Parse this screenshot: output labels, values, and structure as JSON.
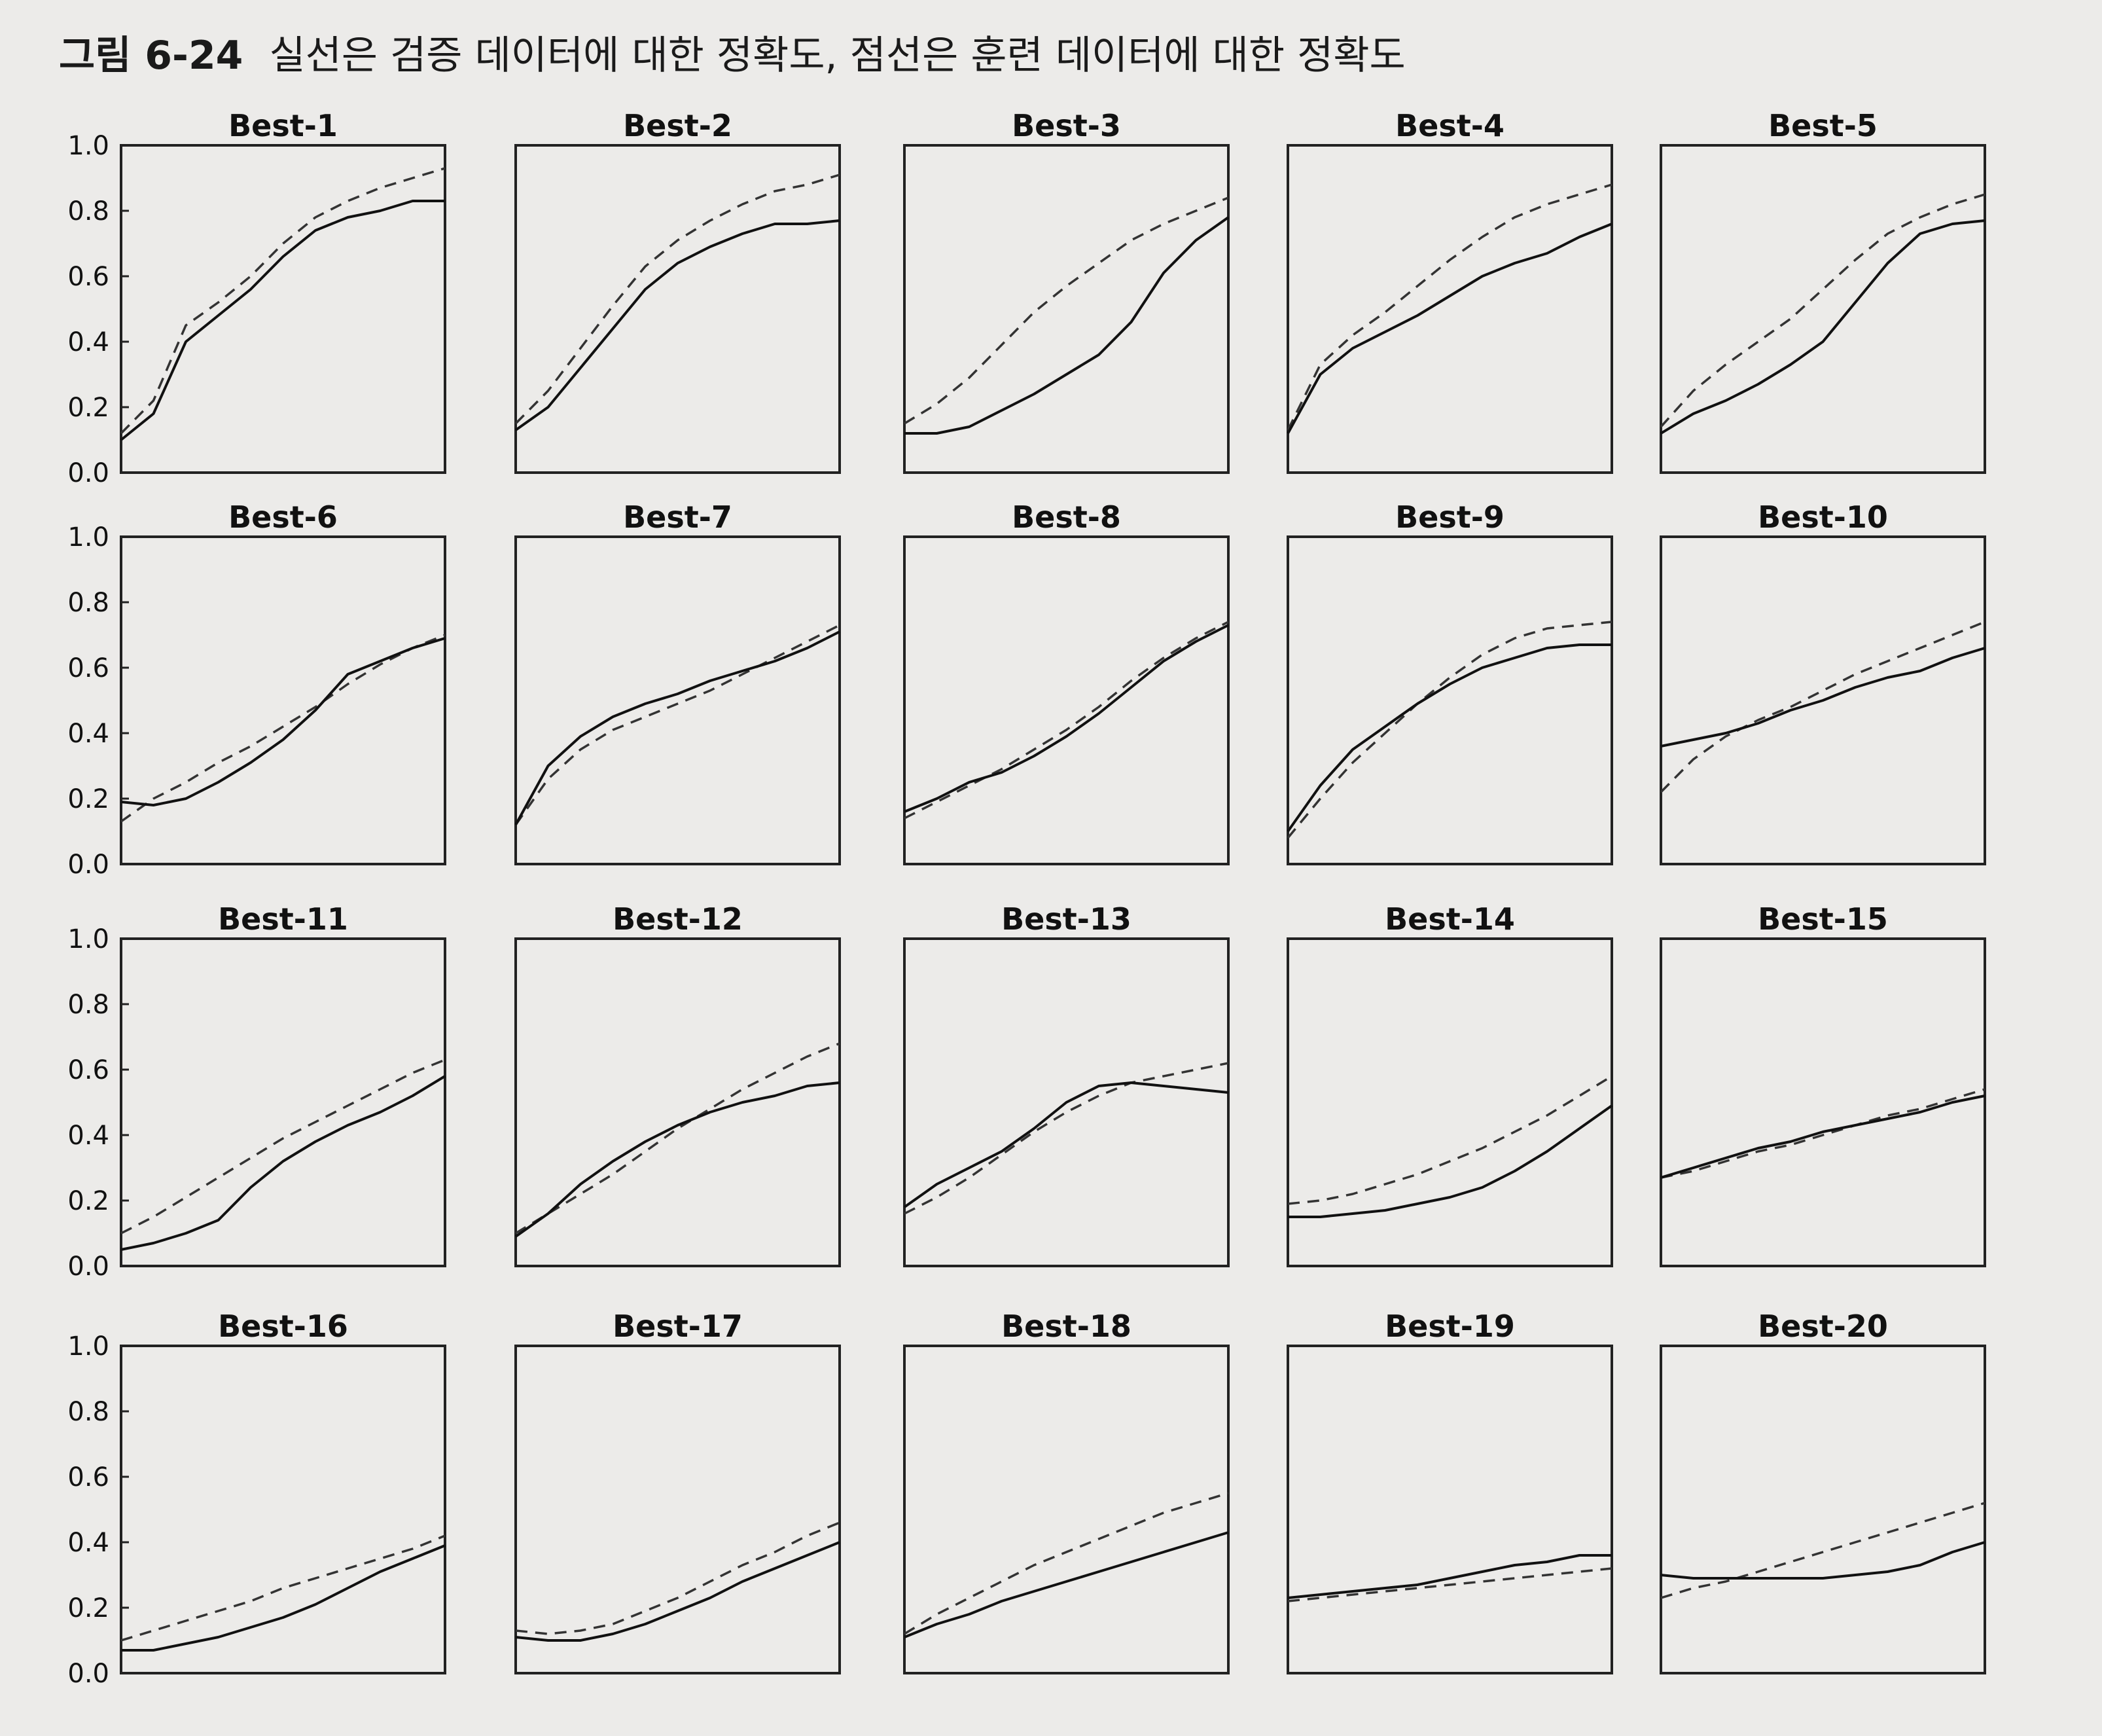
{
  "figure": {
    "label": "그림 6-24",
    "caption": "실선은 검증 데이터에 대한 정확도, 점선은 훈련 데이터에 대한 정확도"
  },
  "chart_data": {
    "type": "line",
    "layout": "grid",
    "rows": 4,
    "cols": 5,
    "ylim": [
      0.0,
      1.0
    ],
    "yticks": [
      "0.0",
      "0.2",
      "0.4",
      "0.6",
      "0.8",
      "1.0"
    ],
    "x": [
      0,
      0.1,
      0.2,
      0.3,
      0.4,
      0.5,
      0.6,
      0.7,
      0.8,
      0.9,
      1.0
    ],
    "series_styles": {
      "validation": "solid",
      "train": "dashed"
    },
    "grid": false,
    "panels": [
      {
        "title": "Best-1",
        "validation": [
          0.1,
          0.18,
          0.4,
          0.48,
          0.56,
          0.66,
          0.74,
          0.78,
          0.8,
          0.83,
          0.83
        ],
        "train": [
          0.12,
          0.22,
          0.45,
          0.52,
          0.6,
          0.7,
          0.78,
          0.83,
          0.87,
          0.9,
          0.93
        ]
      },
      {
        "title": "Best-2",
        "validation": [
          0.13,
          0.2,
          0.32,
          0.44,
          0.56,
          0.64,
          0.69,
          0.73,
          0.76,
          0.76,
          0.77
        ],
        "train": [
          0.15,
          0.25,
          0.38,
          0.51,
          0.63,
          0.71,
          0.77,
          0.82,
          0.86,
          0.88,
          0.91
        ]
      },
      {
        "title": "Best-3",
        "validation": [
          0.12,
          0.12,
          0.14,
          0.19,
          0.24,
          0.3,
          0.36,
          0.46,
          0.61,
          0.71,
          0.78
        ],
        "train": [
          0.15,
          0.21,
          0.29,
          0.39,
          0.49,
          0.57,
          0.64,
          0.71,
          0.76,
          0.8,
          0.84
        ]
      },
      {
        "title": "Best-4",
        "validation": [
          0.12,
          0.3,
          0.38,
          0.43,
          0.48,
          0.54,
          0.6,
          0.64,
          0.67,
          0.72,
          0.76
        ],
        "train": [
          0.13,
          0.33,
          0.42,
          0.49,
          0.57,
          0.65,
          0.72,
          0.78,
          0.82,
          0.85,
          0.88
        ]
      },
      {
        "title": "Best-5",
        "validation": [
          0.12,
          0.18,
          0.22,
          0.27,
          0.33,
          0.4,
          0.52,
          0.64,
          0.73,
          0.76,
          0.77
        ],
        "train": [
          0.14,
          0.25,
          0.33,
          0.4,
          0.47,
          0.56,
          0.65,
          0.73,
          0.78,
          0.82,
          0.85
        ]
      },
      {
        "title": "Best-6",
        "validation": [
          0.19,
          0.18,
          0.2,
          0.25,
          0.31,
          0.38,
          0.47,
          0.58,
          0.62,
          0.66,
          0.69
        ],
        "train": [
          0.13,
          0.2,
          0.25,
          0.31,
          0.36,
          0.42,
          0.48,
          0.55,
          0.61,
          0.66,
          0.7
        ]
      },
      {
        "title": "Best-7",
        "validation": [
          0.12,
          0.3,
          0.39,
          0.45,
          0.49,
          0.52,
          0.56,
          0.59,
          0.62,
          0.66,
          0.71
        ],
        "train": [
          0.12,
          0.26,
          0.35,
          0.41,
          0.45,
          0.49,
          0.53,
          0.58,
          0.63,
          0.68,
          0.73
        ]
      },
      {
        "title": "Best-8",
        "validation": [
          0.16,
          0.2,
          0.25,
          0.28,
          0.33,
          0.39,
          0.46,
          0.54,
          0.62,
          0.68,
          0.73
        ],
        "train": [
          0.14,
          0.19,
          0.24,
          0.29,
          0.35,
          0.41,
          0.48,
          0.56,
          0.63,
          0.69,
          0.74
        ]
      },
      {
        "title": "Best-9",
        "validation": [
          0.1,
          0.24,
          0.35,
          0.42,
          0.49,
          0.55,
          0.6,
          0.63,
          0.66,
          0.67,
          0.67
        ],
        "train": [
          0.08,
          0.2,
          0.31,
          0.4,
          0.49,
          0.57,
          0.64,
          0.69,
          0.72,
          0.73,
          0.74
        ]
      },
      {
        "title": "Best-10",
        "validation": [
          0.36,
          0.38,
          0.4,
          0.43,
          0.47,
          0.5,
          0.54,
          0.57,
          0.59,
          0.63,
          0.66
        ],
        "train": [
          0.22,
          0.32,
          0.39,
          0.44,
          0.48,
          0.53,
          0.58,
          0.62,
          0.66,
          0.7,
          0.74
        ]
      },
      {
        "title": "Best-11",
        "validation": [
          0.05,
          0.07,
          0.1,
          0.14,
          0.24,
          0.32,
          0.38,
          0.43,
          0.47,
          0.52,
          0.58
        ],
        "train": [
          0.1,
          0.15,
          0.21,
          0.27,
          0.33,
          0.39,
          0.44,
          0.49,
          0.54,
          0.59,
          0.63
        ]
      },
      {
        "title": "Best-12",
        "validation": [
          0.09,
          0.16,
          0.25,
          0.32,
          0.38,
          0.43,
          0.47,
          0.5,
          0.52,
          0.55,
          0.56
        ],
        "train": [
          0.1,
          0.16,
          0.22,
          0.28,
          0.35,
          0.42,
          0.48,
          0.54,
          0.59,
          0.64,
          0.68
        ]
      },
      {
        "title": "Best-13",
        "validation": [
          0.18,
          0.25,
          0.3,
          0.35,
          0.42,
          0.5,
          0.55,
          0.56,
          0.55,
          0.54,
          0.53
        ],
        "train": [
          0.16,
          0.21,
          0.27,
          0.34,
          0.41,
          0.47,
          0.52,
          0.56,
          0.58,
          0.6,
          0.62
        ]
      },
      {
        "title": "Best-14",
        "validation": [
          0.15,
          0.15,
          0.16,
          0.17,
          0.19,
          0.21,
          0.24,
          0.29,
          0.35,
          0.42,
          0.49
        ],
        "train": [
          0.19,
          0.2,
          0.22,
          0.25,
          0.28,
          0.32,
          0.36,
          0.41,
          0.46,
          0.52,
          0.58
        ]
      },
      {
        "title": "Best-15",
        "validation": [
          0.27,
          0.3,
          0.33,
          0.36,
          0.38,
          0.41,
          0.43,
          0.45,
          0.47,
          0.5,
          0.52
        ],
        "train": [
          0.27,
          0.29,
          0.32,
          0.35,
          0.37,
          0.4,
          0.43,
          0.46,
          0.48,
          0.51,
          0.54
        ]
      },
      {
        "title": "Best-16",
        "validation": [
          0.07,
          0.07,
          0.09,
          0.11,
          0.14,
          0.17,
          0.21,
          0.26,
          0.31,
          0.35,
          0.39
        ],
        "train": [
          0.1,
          0.13,
          0.16,
          0.19,
          0.22,
          0.26,
          0.29,
          0.32,
          0.35,
          0.38,
          0.42
        ]
      },
      {
        "title": "Best-17",
        "validation": [
          0.11,
          0.1,
          0.1,
          0.12,
          0.15,
          0.19,
          0.23,
          0.28,
          0.32,
          0.36,
          0.4
        ],
        "train": [
          0.13,
          0.12,
          0.13,
          0.15,
          0.19,
          0.23,
          0.28,
          0.33,
          0.37,
          0.42,
          0.46
        ]
      },
      {
        "title": "Best-18",
        "validation": [
          0.11,
          0.15,
          0.18,
          0.22,
          0.25,
          0.28,
          0.31,
          0.34,
          0.37,
          0.4,
          0.43
        ],
        "train": [
          0.12,
          0.18,
          0.23,
          0.28,
          0.33,
          0.37,
          0.41,
          0.45,
          0.49,
          0.52,
          0.55
        ]
      },
      {
        "title": "Best-19",
        "validation": [
          0.23,
          0.24,
          0.25,
          0.26,
          0.27,
          0.29,
          0.31,
          0.33,
          0.34,
          0.36,
          0.36
        ],
        "train": [
          0.22,
          0.23,
          0.24,
          0.25,
          0.26,
          0.27,
          0.28,
          0.29,
          0.3,
          0.31,
          0.32
        ]
      },
      {
        "title": "Best-20",
        "validation": [
          0.3,
          0.29,
          0.29,
          0.29,
          0.29,
          0.29,
          0.3,
          0.31,
          0.33,
          0.37,
          0.4
        ],
        "train": [
          0.23,
          0.26,
          0.28,
          0.31,
          0.34,
          0.37,
          0.4,
          0.43,
          0.46,
          0.49,
          0.52
        ]
      }
    ]
  }
}
